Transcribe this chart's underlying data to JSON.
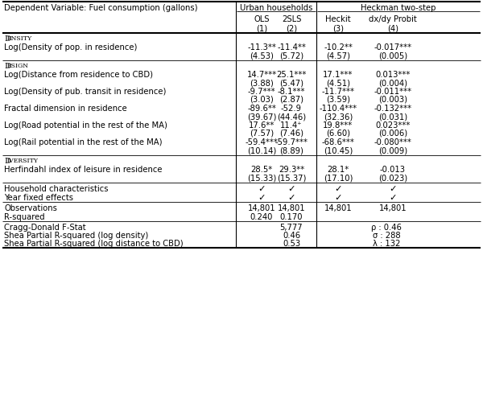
{
  "sections": [
    {
      "section_name": "DENSITY",
      "rows": [
        {
          "label": "Log(Density of pop. in residence)",
          "values": [
            "-11.3**",
            "-11.4**",
            "-10.2**",
            "-0.017***"
          ],
          "se": [
            "(4.53)",
            "(5.72)",
            "(4.57)",
            "(0.005)"
          ]
        }
      ]
    },
    {
      "section_name": "DESIGN",
      "rows": [
        {
          "label": "Log(Distance from residence to CBD)",
          "values": [
            "14.7***",
            "25.1***",
            "17.1***",
            "0.013***"
          ],
          "se": [
            "(3.88)",
            "(5.47)",
            "(4.51)",
            "(0.004)"
          ]
        },
        {
          "label": "Log(Density of pub. transit in residence)",
          "values": [
            "-9.7***",
            "-8.1***",
            "-11.7***",
            "-0.011***"
          ],
          "se": [
            "(3.03)",
            "(2.87)",
            "(3.59)",
            "(0.003)"
          ]
        },
        {
          "label": "Fractal dimension in residence",
          "values": [
            "-89.6**",
            "-52.9",
            "-110.4***",
            "-0.132***"
          ],
          "se": [
            "(39.67)",
            "(44.46)",
            "(32.36)",
            "(0.031)"
          ]
        },
        {
          "label": "Log(Road potential in the rest of the MA)",
          "values": [
            "17.6**",
            "11.4⁺",
            "19.8***",
            "0.023***"
          ],
          "se": [
            "(7.57)",
            "(7.46)",
            "(6.60)",
            "(0.006)"
          ]
        },
        {
          "label": "Log(Rail potential in the rest of the MA)",
          "values": [
            "-59.4***",
            "-59.7***",
            "-68.6***",
            "-0.080***"
          ],
          "se": [
            "(10.14)",
            "(8.89)",
            "(10.45)",
            "(0.009)"
          ]
        }
      ]
    },
    {
      "section_name": "DIVERSITY",
      "rows": [
        {
          "label": "Herfindahl index of leisure in residence",
          "values": [
            "28.5*",
            "29.3**",
            "28.1*",
            "-0.013"
          ],
          "se": [
            "(15.33)",
            "(15.37)",
            "(17.10)",
            "(0.023)"
          ]
        }
      ]
    }
  ],
  "footer_rows": [
    {
      "label": "Household characteristics",
      "values": [
        "✓",
        "✓",
        "✓",
        "✓"
      ]
    },
    {
      "label": "Year fixed effects",
      "values": [
        "✓",
        "✓",
        "✓",
        "✓"
      ]
    }
  ],
  "stat_rows": [
    {
      "label": "Observations",
      "values": [
        "14,801",
        "14,801",
        "14,801",
        "14,801"
      ]
    },
    {
      "label": "R-squared",
      "values": [
        "0.240",
        "0.170",
        "",
        ""
      ]
    }
  ],
  "bottom_rows": [
    {
      "label": "Cragg-Donald F-Stat",
      "col2_val": "5,777",
      "col4_val": "ρ : 0.46"
    },
    {
      "label": "Shea Partial R-squared (log density)",
      "col2_val": "0.46",
      "col4_val": "σ : 288"
    },
    {
      "label": "Shea Partial R-squared (log distance to CBD)",
      "col2_val": "0.53",
      "col4_val": "λ : 132"
    }
  ],
  "bg_color": "#ffffff",
  "text_color": "#000000",
  "font_size": 7.2,
  "header_dep_var": "Dependent Variable: Fuel consumption (gallons)",
  "header_urban": "Urban households",
  "header_heckman": "Heckman two-step",
  "col2_label": "OLS",
  "col3_label": "2SLS",
  "col4_label": "Heckit",
  "col5_label": "dx/dy Probit",
  "col2_num": "(1)",
  "col3_num": "(2)",
  "col4_num": "(3)",
  "col5_num": "(4)"
}
